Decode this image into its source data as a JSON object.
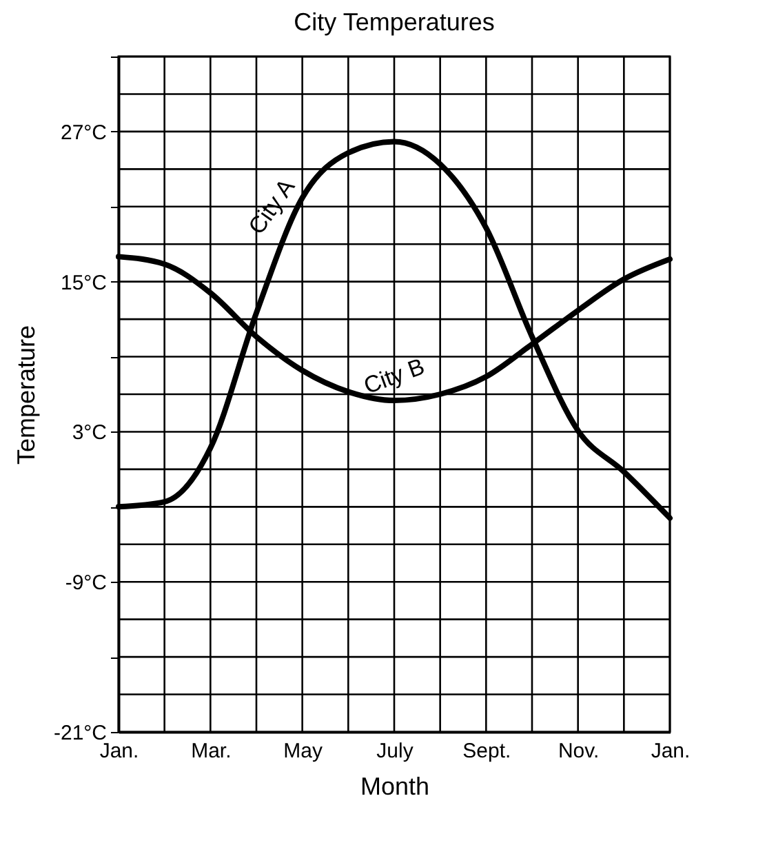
{
  "chart_data": {
    "type": "line",
    "title": "City Temperatures",
    "xlabel": "Month",
    "ylabel": "Temperature",
    "categories": [
      "Jan.",
      null,
      "Mar.",
      null,
      "May",
      null,
      "July",
      null,
      "Sept.",
      null,
      "Nov.",
      null,
      "Jan."
    ],
    "series": [
      {
        "name": "City A",
        "color": "#000000",
        "values": [
          -3,
          -2.6,
          1.7,
          12.5,
          21.7,
          25.3,
          26.2,
          24.4,
          19.3,
          10.6,
          3.1,
          -0.2,
          -3.9
        ]
      },
      {
        "name": "City B",
        "color": "#000000",
        "values": [
          17,
          16.4,
          14.1,
          10.6,
          7.9,
          6.2,
          5.5,
          6,
          7.4,
          10,
          12.7,
          15.2,
          16.8
        ]
      }
    ],
    "ylim": [
      -21,
      33
    ],
    "yticks": [
      {
        "value": -21,
        "label": "-21°C"
      },
      {
        "value": -18,
        "label": null
      },
      {
        "value": -15,
        "label": null
      },
      {
        "value": -12,
        "label": null
      },
      {
        "value": -9,
        "label": "-9°C"
      },
      {
        "value": -6,
        "label": null
      },
      {
        "value": -3,
        "label": null
      },
      {
        "value": 0,
        "label": null
      },
      {
        "value": 3,
        "label": "3°C"
      },
      {
        "value": 6,
        "label": null
      },
      {
        "value": 9,
        "label": null
      },
      {
        "value": 12,
        "label": null
      },
      {
        "value": 15,
        "label": "15°C"
      },
      {
        "value": 18,
        "label": null
      },
      {
        "value": 21,
        "label": null
      },
      {
        "value": 24,
        "label": null
      },
      {
        "value": 27,
        "label": "27°C"
      },
      {
        "value": 30,
        "label": null
      },
      {
        "value": 33,
        "label": null
      }
    ],
    "grid": true,
    "legend": false,
    "marker": "none",
    "line_style": "solid"
  }
}
